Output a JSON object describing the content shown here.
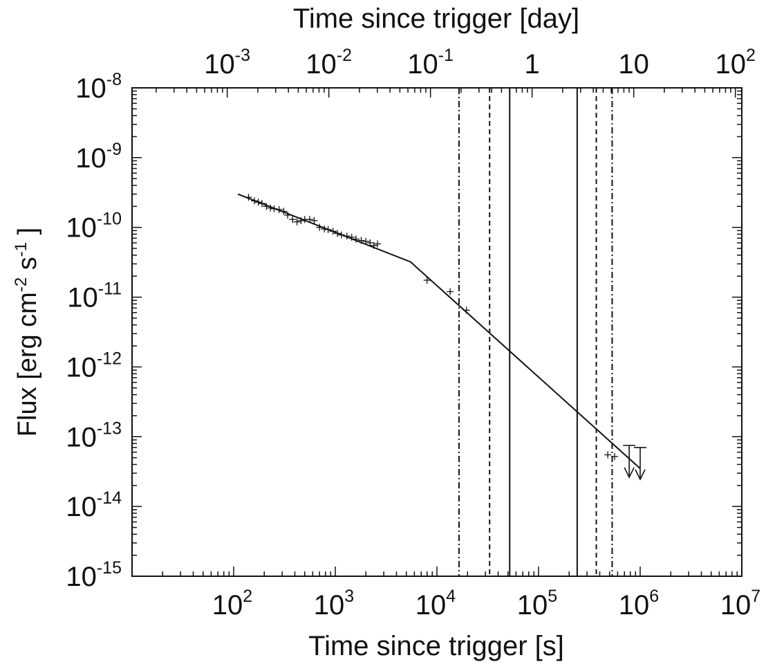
{
  "chart_data": {
    "type": "line",
    "x_scale": "log",
    "y_scale": "log",
    "xlabel": "Time since trigger [s]",
    "xlabel_top": "Time since trigger [day]",
    "ylabel": "Flux [erg cm",
    "ylabel_sup1": "-2",
    "ylabel_mid": " s",
    "ylabel_sup2": "-1",
    "ylabel_end": " ]",
    "xlim": [
      10,
      10000000
    ],
    "ylim": [
      1e-15,
      1e-08
    ],
    "x_ticks": [
      {
        "value": 100,
        "base": "10",
        "exp": "2"
      },
      {
        "value": 1000,
        "base": "10",
        "exp": "3"
      },
      {
        "value": 10000,
        "base": "10",
        "exp": "4"
      },
      {
        "value": 100000,
        "base": "10",
        "exp": "5"
      },
      {
        "value": 1000000,
        "base": "10",
        "exp": "6"
      },
      {
        "value": 10000000,
        "base": "10",
        "exp": "7"
      }
    ],
    "x_top_ticks": [
      {
        "value": 0.001,
        "base": "10",
        "exp": "-3"
      },
      {
        "value": 0.01,
        "base": "10",
        "exp": "-2"
      },
      {
        "value": 0.1,
        "base": "10",
        "exp": "-1"
      },
      {
        "value": 1,
        "base": "1",
        "exp": ""
      },
      {
        "value": 10,
        "base": "10",
        "exp": ""
      },
      {
        "value": 100,
        "base": "10",
        "exp": "2"
      }
    ],
    "y_ticks": [
      {
        "value": 1e-08,
        "base": "10",
        "exp": "-8"
      },
      {
        "value": 1e-09,
        "base": "10",
        "exp": "-9"
      },
      {
        "value": 1e-10,
        "base": "10",
        "exp": "-10"
      },
      {
        "value": 1e-11,
        "base": "10",
        "exp": "-11"
      },
      {
        "value": 1e-12,
        "base": "10",
        "exp": "-12"
      },
      {
        "value": 1e-13,
        "base": "10",
        "exp": "-13"
      },
      {
        "value": 1e-14,
        "base": "10",
        "exp": "-14"
      },
      {
        "value": 1e-15,
        "base": "10",
        "exp": "-15"
      }
    ],
    "model_line": {
      "x": [
        110,
        5500,
        1000000
      ],
      "y": [
        3e-10,
        3.2e-11,
        3.5e-14
      ]
    },
    "data_points": [
      {
        "x": 140,
        "y": 2.7e-10
      },
      {
        "x": 160,
        "y": 2.4e-10
      },
      {
        "x": 175,
        "y": 2.3e-10
      },
      {
        "x": 190,
        "y": 2.2e-10
      },
      {
        "x": 210,
        "y": 2e-10
      },
      {
        "x": 230,
        "y": 1.9e-10
      },
      {
        "x": 250,
        "y": 1.85e-10
      },
      {
        "x": 280,
        "y": 1.8e-10
      },
      {
        "x": 310,
        "y": 1.7e-10
      },
      {
        "x": 340,
        "y": 1.5e-10
      },
      {
        "x": 380,
        "y": 1.3e-10
      },
      {
        "x": 420,
        "y": 1.2e-10
      },
      {
        "x": 460,
        "y": 1.25e-10
      },
      {
        "x": 500,
        "y": 1.3e-10
      },
      {
        "x": 560,
        "y": 1.3e-10
      },
      {
        "x": 620,
        "y": 1.25e-10
      },
      {
        "x": 700,
        "y": 1e-10
      },
      {
        "x": 780,
        "y": 9.5e-11
      },
      {
        "x": 850,
        "y": 9.3e-11
      },
      {
        "x": 950,
        "y": 8.8e-11
      },
      {
        "x": 1050,
        "y": 8.2e-11
      },
      {
        "x": 1150,
        "y": 7.8e-11
      },
      {
        "x": 1300,
        "y": 7.5e-11
      },
      {
        "x": 1450,
        "y": 7.2e-11
      },
      {
        "x": 1600,
        "y": 6.8e-11
      },
      {
        "x": 1800,
        "y": 6.5e-11
      },
      {
        "x": 2000,
        "y": 6.3e-11
      },
      {
        "x": 2200,
        "y": 6e-11
      },
      {
        "x": 2400,
        "y": 5.5e-11
      },
      {
        "x": 2600,
        "y": 5.8e-11
      },
      {
        "x": 8000,
        "y": 1.75e-11
      },
      {
        "x": 13500,
        "y": 1.2e-11
      },
      {
        "x": 19500,
        "y": 6.5e-12
      },
      {
        "x": 480000,
        "y": 5.5e-14
      },
      {
        "x": 560000,
        "y": 5.2e-14
      }
    ],
    "upper_limits": [
      {
        "x": 780000,
        "y": 7.5e-14
      },
      {
        "x": 1000000,
        "y": 7e-14
      }
    ],
    "vertical_lines": [
      {
        "x": 16500,
        "style": "dashdot"
      },
      {
        "x": 33000,
        "style": "dashed"
      },
      {
        "x": 52000,
        "style": "solid"
      },
      {
        "x": 240000,
        "style": "solid"
      },
      {
        "x": 370000,
        "style": "dashed"
      },
      {
        "x": 530000,
        "style": "dashdot"
      }
    ],
    "grid": false,
    "legend": "none"
  }
}
